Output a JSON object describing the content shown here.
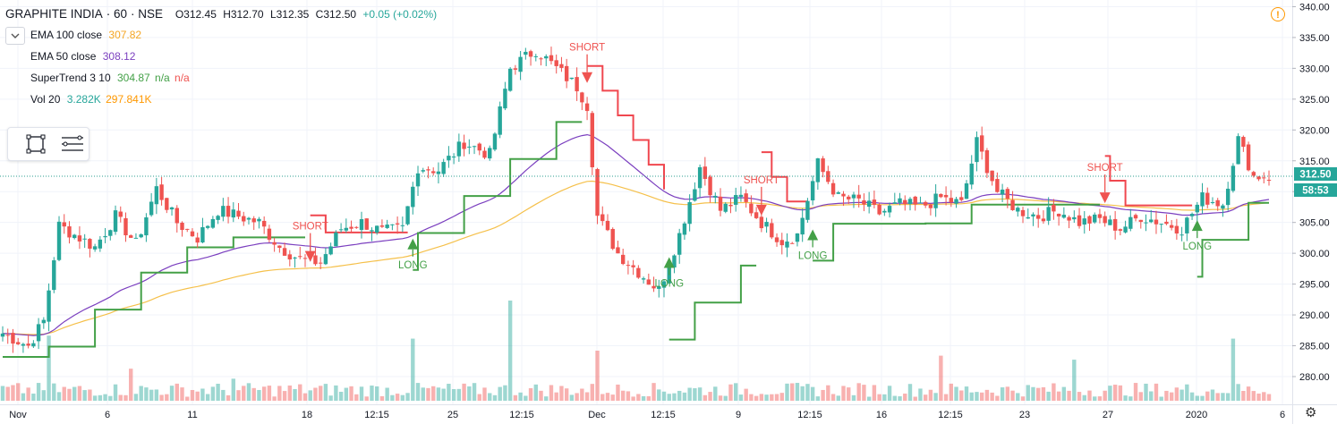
{
  "header": {
    "symbol": "GRAPHITE INDIA",
    "interval": "60",
    "exchange": "NSE",
    "open": "O312.45",
    "high": "H312.70",
    "low": "L312.35",
    "close": "C312.50",
    "change": "+0.05 (+0.02%)"
  },
  "indicators": [
    {
      "name": "EMA 100 close",
      "value": "307.82",
      "color": "#f5a623"
    },
    {
      "name": "EMA 50 close",
      "value": "308.12",
      "color": "#7b3fbf"
    },
    {
      "name": "SuperTrend 3 10",
      "value": "304.87",
      "extra": "n/a",
      "extra2": "n/a",
      "color": "#43a047",
      "color2": "#ef5350"
    },
    {
      "name": "Vol 20",
      "value": "3.282K",
      "value2": "297.841K",
      "color": "#26a69a",
      "color2": "#ff9800"
    }
  ],
  "icons": {
    "collapse": "chevron-down-icon",
    "rectangle_tool": "rectangle-icon",
    "lines_tool": "lines-icon",
    "alert": "alert-icon",
    "settings": "gear-icon"
  },
  "colors": {
    "up": "#26a69a",
    "down": "#ef5350",
    "supertrend_up": "#43a047",
    "supertrend_down": "#f0474f",
    "ema100": "#f5c04a",
    "ema50": "#7b3fbf",
    "grid": "#f0f3fa"
  },
  "price_badge": {
    "price": "312.50",
    "countdown": "58:53"
  },
  "alert_glyph": "!",
  "chart_data": {
    "type": "candlestick",
    "ylim": [
      275.5,
      340.5
    ],
    "y_ticks": [
      "340.00",
      "335.00",
      "330.00",
      "325.00",
      "320.00",
      "315.00",
      "310.00",
      "305.00",
      "300.00",
      "295.00",
      "290.00",
      "285.00",
      "280.00"
    ],
    "x_ticks": [
      "Nov",
      "6",
      "11",
      "18",
      "12:15",
      "25",
      "12:15",
      "Dec",
      "12:15",
      "9",
      "12:15",
      "16",
      "12:15",
      "23",
      "27",
      "2020",
      "6"
    ],
    "signals": [
      {
        "label": "SHORT",
        "type": "short",
        "bar": 60,
        "price": 299.5
      },
      {
        "label": "LONG",
        "type": "long",
        "bar": 80,
        "price": 301.5
      },
      {
        "label": "SHORT",
        "type": "short",
        "bar": 114,
        "price": 328.5
      },
      {
        "label": "LONG",
        "type": "long",
        "bar": 130,
        "price": 298.5
      },
      {
        "label": "SHORT",
        "type": "short",
        "bar": 148,
        "price": 307.0
      },
      {
        "label": "LONG",
        "type": "long",
        "bar": 158,
        "price": 303.0
      },
      {
        "label": "SHORT",
        "type": "short",
        "bar": 215,
        "price": 309.0
      },
      {
        "label": "LONG",
        "type": "long",
        "bar": 233,
        "price": 304.5
      }
    ],
    "anchors": [
      [
        0,
        287.0
      ],
      [
        5,
        285.0
      ],
      [
        8,
        289.0
      ],
      [
        11,
        304.5
      ],
      [
        14,
        303.0
      ],
      [
        18,
        301.0
      ],
      [
        22,
        306.0
      ],
      [
        26,
        301.5
      ],
      [
        30,
        310.5
      ],
      [
        34,
        305.0
      ],
      [
        38,
        302.5
      ],
      [
        42,
        307.0
      ],
      [
        46,
        306.0
      ],
      [
        50,
        305.0
      ],
      [
        54,
        301.0
      ],
      [
        58,
        299.0
      ],
      [
        62,
        298.5
      ],
      [
        66,
        304.0
      ],
      [
        70,
        305.0
      ],
      [
        74,
        303.5
      ],
      [
        78,
        304.0
      ],
      [
        81,
        314.0
      ],
      [
        85,
        313.5
      ],
      [
        90,
        318.0
      ],
      [
        95,
        316.0
      ],
      [
        99,
        330.0
      ],
      [
        104,
        333.0
      ],
      [
        108,
        330.0
      ],
      [
        112,
        327.0
      ],
      [
        114,
        324.0
      ],
      [
        116,
        306.0
      ],
      [
        120,
        300.0
      ],
      [
        124,
        297.0
      ],
      [
        128,
        294.0
      ],
      [
        132,
        303.0
      ],
      [
        136,
        314.0
      ],
      [
        140,
        307.0
      ],
      [
        144,
        309.0
      ],
      [
        148,
        305.0
      ],
      [
        152,
        302.0
      ],
      [
        155,
        303.0
      ],
      [
        159,
        314.5
      ],
      [
        163,
        309.0
      ],
      [
        167,
        308.5
      ],
      [
        171,
        306.5
      ],
      [
        175,
        308.0
      ],
      [
        179,
        307.5
      ],
      [
        183,
        309.0
      ],
      [
        187,
        308.0
      ],
      [
        190,
        318.0
      ],
      [
        194,
        310.0
      ],
      [
        198,
        307.0
      ],
      [
        202,
        306.0
      ],
      [
        206,
        307.0
      ],
      [
        210,
        305.0
      ],
      [
        214,
        305.5
      ],
      [
        218,
        304.0
      ],
      [
        222,
        306.0
      ],
      [
        226,
        305.0
      ],
      [
        230,
        304.0
      ],
      [
        234,
        309.0
      ],
      [
        238,
        308.0
      ],
      [
        241,
        318.5
      ],
      [
        244,
        312.5
      ]
    ],
    "vol_spikes": [
      [
        9,
        0.65
      ],
      [
        25,
        0.32
      ],
      [
        45,
        0.22
      ],
      [
        80,
        0.62
      ],
      [
        99,
        1.0
      ],
      [
        116,
        0.5
      ],
      [
        183,
        0.45
      ],
      [
        209,
        0.41
      ],
      [
        240,
        0.62
      ]
    ]
  }
}
